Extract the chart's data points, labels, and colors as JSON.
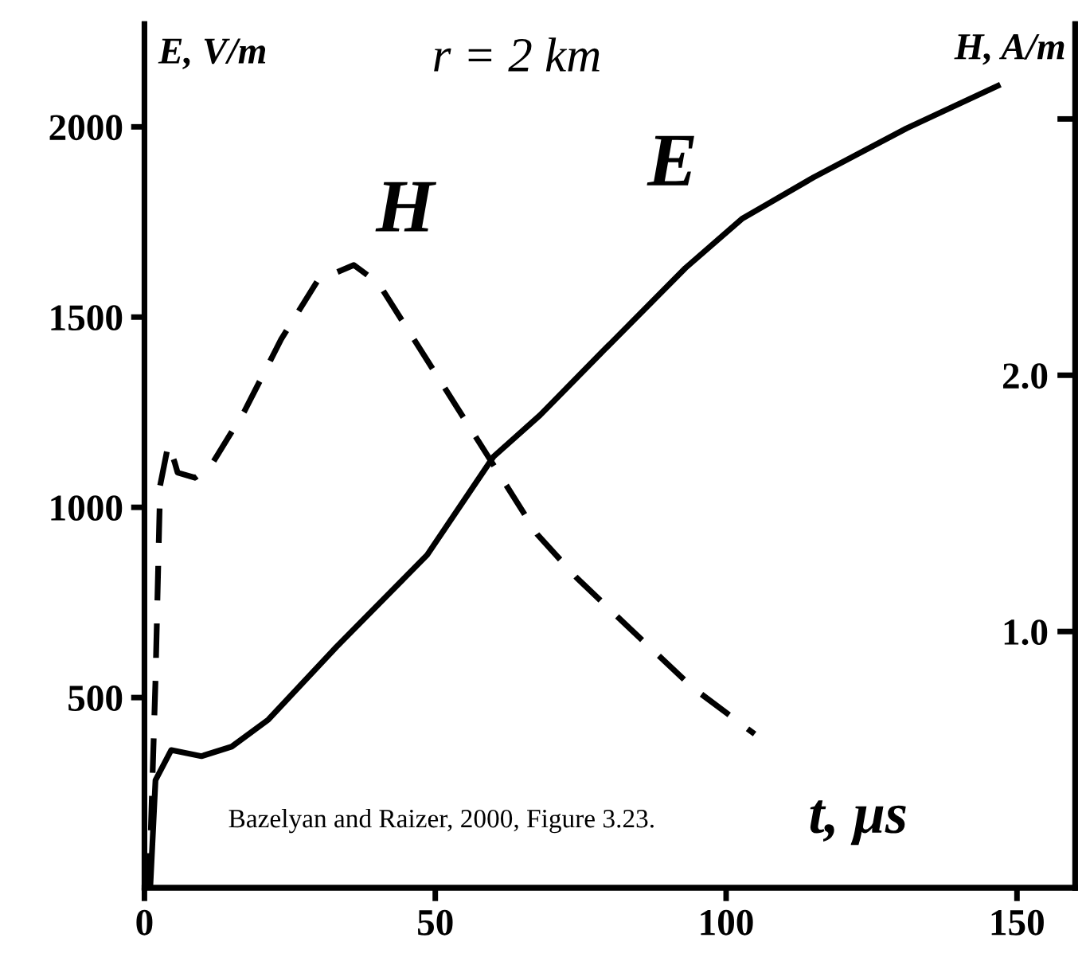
{
  "chart_data": {
    "type": "line",
    "title": "r = 2 km",
    "xlabel": "t, μs",
    "ylabel": "E, V/m",
    "y2label": "H, A/m",
    "annotations": [
      "Bazelyan and Raizer, 2000, Figure 3.23."
    ],
    "legend": false,
    "grid": false,
    "xlim": [
      0,
      160
    ],
    "xticks": [
      0,
      50,
      100,
      150
    ],
    "ylim": [
      0,
      2270
    ],
    "yticks": [
      500,
      1000,
      1500,
      2000
    ],
    "y2lim": [
      0,
      3.37
    ],
    "y2ticks": [
      {
        "value": 1.0,
        "label": "1.0"
      },
      {
        "value": 2.0,
        "label": "2.0"
      },
      {
        "value": 3.0,
        "label": null
      }
    ],
    "series": [
      {
        "name": "E",
        "color": "#000000",
        "line_style": "solid",
        "x": [
          1,
          1.9,
          4.6,
          9.8,
          15,
          21.3,
          33,
          48.6,
          60,
          68,
          78.4,
          93,
          102.7,
          115,
          131,
          146.7
        ],
        "values": [
          0,
          283,
          362,
          346,
          371,
          442,
          633,
          875,
          1133,
          1242,
          1404,
          1629,
          1758,
          1867,
          1996,
          2108
        ]
      },
      {
        "name": "H",
        "color": "#000000",
        "line_style": "dashed",
        "axis": "y2",
        "x": [
          0.8,
          1.9,
          2.7,
          4.1,
          5.2,
          5.7,
          8.7,
          11.5,
          17.2,
          23.5,
          29.8,
          36,
          40.2,
          50.8,
          60,
          67.5,
          74.3,
          84,
          94.3,
          104.9
        ],
        "values": [
          0,
          0.81,
          1.57,
          1.73,
          1.66,
          1.62,
          1.6,
          1.65,
          1.86,
          2.14,
          2.37,
          2.43,
          2.36,
          1.98,
          1.65,
          1.38,
          1.21,
          1.0,
          0.78,
          0.6
        ]
      }
    ]
  }
}
